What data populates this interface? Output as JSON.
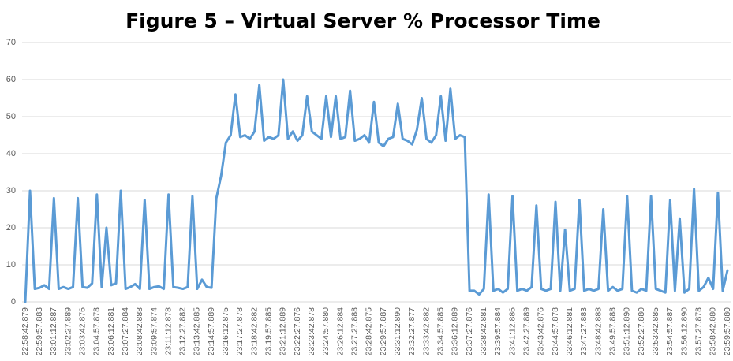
{
  "chart_data": {
    "type": "line",
    "title": "Figure 5 – Virtual Server % Processor Time",
    "color": "#5b9bd5",
    "grid": true,
    "ylim": [
      0,
      70
    ],
    "yticks": [
      0,
      10,
      20,
      30,
      40,
      50,
      60,
      70
    ],
    "categories": [
      "22:58:42.879",
      null,
      null,
      "22:59:57.883",
      null,
      null,
      "23:01:12.887",
      null,
      null,
      "23:02:27.889",
      null,
      null,
      "23:03:42.876",
      null,
      null,
      "23:04:57.878",
      null,
      null,
      "23:06:12.881",
      null,
      null,
      "23:07:27.884",
      null,
      null,
      "23:08:42.888",
      null,
      null,
      "23:09:57.874",
      null,
      null,
      "23:11:12.878",
      null,
      null,
      "23:12:27.882",
      null,
      null,
      "23:13:42.885",
      null,
      null,
      "23:14:57.889",
      null,
      null,
      "23:16:12.875",
      null,
      null,
      "23:17:27.878",
      null,
      null,
      "23:18:42.882",
      null,
      null,
      "23:19:57.885",
      null,
      null,
      "23:21:12.889",
      null,
      null,
      "23:22:27.876",
      null,
      null,
      "23:23:42.878",
      null,
      null,
      "23:24:57.880",
      null,
      null,
      "23:26:12.884",
      null,
      null,
      "23:27:27.888",
      null,
      null,
      "23:28:42.875",
      null,
      null,
      "23:29:57.887",
      null,
      null,
      "23:31:12.890",
      null,
      null,
      "23:32:27.877",
      null,
      null,
      "23:33:42.882",
      null,
      null,
      "23:34:57.885",
      null,
      null,
      "23:36:12.889",
      null,
      null,
      "23:37:27.876",
      null,
      null,
      "23:38:42.881",
      null,
      null,
      "23:39:57.884",
      null,
      null,
      "23:41:12.886",
      null,
      null,
      "23:42:27.889",
      null,
      null,
      "23:43:42.876",
      null,
      null,
      "23:44:57.878",
      null,
      null,
      "23:46:12.881",
      null,
      null,
      "23:47:27.883",
      null,
      null,
      "23:48:42.888",
      null,
      null,
      "23:49:57.888",
      null,
      null,
      "23:51:12.890",
      null,
      null,
      "23:52:27.880",
      null,
      null,
      "23:53:42.885",
      null,
      null,
      "23:54:57.887",
      null,
      null,
      "23:56:12.890",
      null,
      null,
      "23:57:27.878",
      null,
      null,
      "23:58:42.880",
      null,
      null,
      "23:59:57.880"
    ],
    "values": [
      0,
      30,
      3.5,
      3.8,
      4.5,
      3.5,
      28,
      3.5,
      4,
      3.5,
      4,
      28,
      4,
      3.8,
      5,
      29,
      4,
      20,
      4.5,
      5,
      30,
      3.5,
      4,
      4.8,
      3.5,
      27.5,
      3.5,
      4,
      4.2,
      3.5,
      29,
      4,
      3.8,
      3.5,
      4,
      28.5,
      3.5,
      6,
      4,
      3.8,
      28,
      34,
      43,
      45,
      56,
      44.5,
      45,
      44,
      46,
      58.5,
      43.5,
      44.5,
      44,
      45,
      60,
      44,
      46,
      43.5,
      45,
      55.5,
      46,
      45,
      44,
      55.5,
      44.5,
      55.5,
      44,
      44.5,
      57,
      43.5,
      44,
      45,
      43,
      54,
      43,
      42,
      44,
      44.5,
      53.5,
      44,
      43.5,
      42.5,
      46.5,
      55,
      44,
      43,
      45,
      55.5,
      43.5,
      57.5,
      44,
      45,
      44.5,
      3,
      3,
      2,
      3.5,
      29,
      3,
      3.5,
      2.5,
      3.5,
      28.5,
      3,
      3.5,
      3,
      4,
      26,
      3.5,
      3,
      3.5,
      27,
      3,
      19.5,
      3,
      3.5,
      27.5,
      3,
      3.5,
      3,
      3.5,
      25,
      3,
      4,
      3,
      3.5,
      28.5,
      3,
      2.5,
      3.5,
      3,
      28.5,
      3.5,
      3,
      2.5,
      27.5,
      3,
      22.5,
      2.5,
      3.5,
      30.5,
      3,
      4,
      6.5,
      3.5,
      29.5,
      3,
      8.5
    ]
  }
}
